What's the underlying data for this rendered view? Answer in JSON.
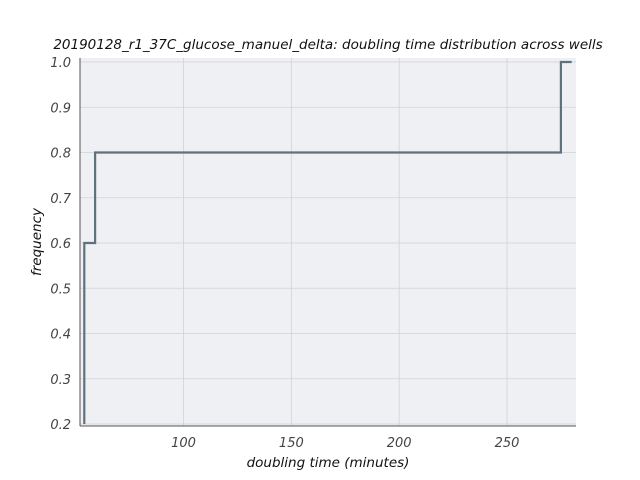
{
  "chart_data": {
    "type": "line",
    "title": "20190128_r1_37C_glucose_manuel_delta: doubling time distribution across wells",
    "xlabel": "doubling time (minutes)",
    "ylabel": "frequency",
    "xlim": [
      52,
      282
    ],
    "ylim": [
      0.2,
      1.0
    ],
    "x_ticks": [
      100,
      150,
      200,
      250
    ],
    "y_ticks": [
      0.2,
      0.3,
      0.4,
      0.5,
      0.6,
      0.7,
      0.8,
      0.9,
      1.0
    ],
    "grid": true,
    "step": "post",
    "series": [
      {
        "color": "#5f717d",
        "x": [
          54,
          54,
          56,
          56,
          59,
          59,
          275,
          275,
          280
        ],
        "y": [
          0.2,
          0.6,
          0.6,
          0.6,
          0.6,
          0.8,
          0.8,
          1.0,
          1.0
        ]
      }
    ]
  }
}
